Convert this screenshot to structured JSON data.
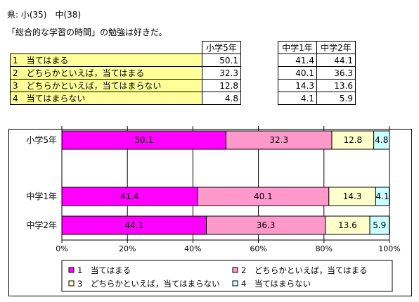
{
  "header": {
    "line1": "県: 小(35)　中(38)",
    "line2": "「総合的な学習の時間」の勉強は好きだ。"
  },
  "table": {
    "columns": [
      "小学5年",
      "中学1年",
      "中学2年"
    ],
    "rows": [
      {
        "label": "1　当てはまる",
        "values": [
          "50.1",
          "41.4",
          "44.1"
        ]
      },
      {
        "label": "2　どちらかといえば，当てはまる",
        "values": [
          "32.3",
          "40.1",
          "36.3"
        ]
      },
      {
        "label": "3　どちらかといえば，当てはまらない",
        "values": [
          "12.8",
          "14.3",
          "13.6"
        ]
      },
      {
        "label": "4　当てはまらない",
        "values": [
          "4.8",
          "4.1",
          "5.9"
        ]
      }
    ]
  },
  "chart_data": {
    "type": "bar",
    "orientation": "horizontal",
    "stacked": true,
    "categories": [
      "小学5年",
      "中学1年",
      "中学2年"
    ],
    "series": [
      {
        "name": "1　当てはまる",
        "values": [
          50.1,
          41.4,
          44.1
        ],
        "color": "#ff00ff"
      },
      {
        "name": "2　どちらかといえば，当てはまる",
        "values": [
          32.3,
          40.1,
          36.3
        ],
        "color": "#ff99cc"
      },
      {
        "name": "3　どちらかといえば，当てはまらない",
        "values": [
          12.8,
          14.3,
          13.6
        ],
        "color": "#ffffcc"
      },
      {
        "name": "4　当てはまらない",
        "values": [
          4.8,
          4.1,
          5.9
        ],
        "color": "#ccffff"
      }
    ],
    "xlim": [
      0,
      100
    ],
    "xticks": [
      "0%",
      "20%",
      "40%",
      "60%",
      "80%",
      "100%"
    ],
    "grid": true,
    "legend": "bottom",
    "title": "",
    "xlabel": "",
    "ylabel": ""
  }
}
